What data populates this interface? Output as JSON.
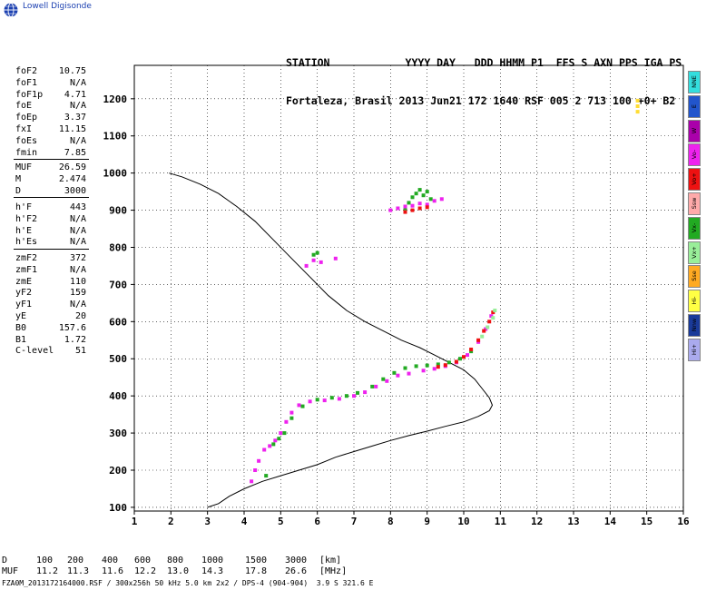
{
  "logo_text": "Lowell Digisonde",
  "header": {
    "line1": "STATION            YYYY DAY   DDD HHMM P1  FFS S AXN PPS IGA PS",
    "line2": "Fortaleza, Brasil 2013 Jun21 172 1640 RSF 005 2 713 100 +0+ B2"
  },
  "params": [
    [
      {
        "label": "foF2",
        "value": "10.75"
      },
      {
        "label": "foF1",
        "value": "N/A"
      },
      {
        "label": "foF1p",
        "value": "4.71"
      },
      {
        "label": "foE",
        "value": "N/A"
      },
      {
        "label": "foEp",
        "value": "3.37"
      },
      {
        "label": "fxI",
        "value": "11.15"
      },
      {
        "label": "foEs",
        "value": "N/A"
      },
      {
        "label": "fmin",
        "value": "7.85"
      }
    ],
    [
      {
        "label": "MUF",
        "value": "26.59"
      },
      {
        "label": "M",
        "value": "2.474"
      },
      {
        "label": "D",
        "value": "3000"
      }
    ],
    [
      {
        "label": "h'F",
        "value": "443"
      },
      {
        "label": "h'F2",
        "value": "N/A"
      },
      {
        "label": "h'E",
        "value": "N/A"
      },
      {
        "label": "h'Es",
        "value": "N/A"
      }
    ],
    [
      {
        "label": "zmF2",
        "value": "372"
      },
      {
        "label": "zmF1",
        "value": "N/A"
      },
      {
        "label": "zmE",
        "value": "110"
      },
      {
        "label": "yF2",
        "value": "159"
      },
      {
        "label": "yF1",
        "value": "N/A"
      },
      {
        "label": "yE",
        "value": "20"
      },
      {
        "label": "B0",
        "value": "157.6"
      },
      {
        "label": "B1",
        "value": "1.72"
      },
      {
        "label": "C-level",
        "value": "51"
      }
    ]
  ],
  "legend": [
    {
      "label": "NNE",
      "color": "#33dddd"
    },
    {
      "label": "E",
      "color": "#2255cc"
    },
    {
      "label": "W",
      "color": "#aa00aa"
    },
    {
      "label": "Vo-",
      "color": "#ee22ee"
    },
    {
      "label": "Vo+",
      "color": "#ee1111"
    },
    {
      "label": "Ssw",
      "color": "#ffaaaa"
    },
    {
      "label": "Vx-",
      "color": "#22aa22"
    },
    {
      "label": "Vx+",
      "color": "#99ee99"
    },
    {
      "label": "Sse",
      "color": "#ffaa22"
    },
    {
      "label": "Hi-",
      "color": "#ffff44"
    },
    {
      "label": "Nnw",
      "color": "#1a3a99"
    },
    {
      "label": "Hi+",
      "color": "#aaaaee"
    }
  ],
  "muf_table": {
    "row_labels": [
      "D",
      "MUF"
    ],
    "units": [
      "[km]",
      "[MHz]"
    ],
    "distances": [
      "100",
      "200",
      "400",
      "600",
      "800",
      "1000",
      "1500",
      "3000"
    ],
    "mufs": [
      "11.2",
      "11.3",
      "11.6",
      "12.2",
      "13.0",
      "14.3",
      "17.8",
      "26.6"
    ]
  },
  "footer": "FZA0M_2013172164000.RSF / 300x256h 50 kHz 5.0 km 2x2 / DPS-4 (904-904)  3.9 S 321.6 E",
  "chart_data": {
    "type": "scatter",
    "xlim": [
      1,
      16
    ],
    "ylim": [
      90,
      1290
    ],
    "x_ticks": [
      "1",
      "2",
      "3",
      "4",
      "5",
      "6",
      "7",
      "8",
      "9",
      "10",
      "11",
      "12",
      "13",
      "14",
      "15",
      "16"
    ],
    "y_ticks": [
      "100",
      "200",
      "300",
      "400",
      "500",
      "600",
      "700",
      "800",
      "900",
      "1000",
      "1100",
      "1200"
    ],
    "grid": true,
    "profile_line": [
      [
        3.0,
        100
      ],
      [
        3.3,
        110
      ],
      [
        3.6,
        130
      ],
      [
        4.0,
        150
      ],
      [
        4.5,
        170
      ],
      [
        5.0,
        185
      ],
      [
        5.5,
        200
      ],
      [
        6.0,
        215
      ],
      [
        6.5,
        235
      ],
      [
        7.0,
        250
      ],
      [
        7.5,
        265
      ],
      [
        8.0,
        280
      ],
      [
        8.5,
        293
      ],
      [
        9.0,
        305
      ],
      [
        9.5,
        318
      ],
      [
        10.0,
        330
      ],
      [
        10.4,
        345
      ],
      [
        10.7,
        360
      ],
      [
        10.78,
        375
      ],
      [
        10.7,
        395
      ],
      [
        10.5,
        420
      ],
      [
        10.3,
        445
      ],
      [
        10.0,
        470
      ],
      [
        9.6,
        490
      ],
      [
        9.2,
        510
      ],
      [
        8.8,
        530
      ],
      [
        8.3,
        550
      ],
      [
        7.8,
        575
      ],
      [
        7.3,
        600
      ],
      [
        6.8,
        630
      ],
      [
        6.3,
        670
      ],
      [
        5.8,
        720
      ],
      [
        5.3,
        770
      ],
      [
        4.8,
        820
      ],
      [
        4.3,
        870
      ],
      [
        3.8,
        910
      ],
      [
        3.3,
        945
      ],
      [
        2.8,
        970
      ],
      [
        2.3,
        990
      ],
      [
        1.95,
        1000
      ]
    ],
    "traces": [
      {
        "color": "#ee22ee",
        "points": [
          [
            4.2,
            170
          ],
          [
            4.3,
            200
          ],
          [
            4.4,
            225
          ],
          [
            4.55,
            255
          ],
          [
            4.7,
            265
          ],
          [
            4.85,
            280
          ],
          [
            5.0,
            300
          ],
          [
            5.15,
            330
          ],
          [
            5.3,
            355
          ],
          [
            5.5,
            375
          ],
          [
            5.8,
            385
          ],
          [
            6.2,
            388
          ],
          [
            6.6,
            392
          ],
          [
            7.0,
            400
          ],
          [
            7.3,
            410
          ],
          [
            7.6,
            425
          ],
          [
            7.9,
            440
          ],
          [
            8.2,
            455
          ],
          [
            8.5,
            460
          ],
          [
            8.9,
            468
          ],
          [
            9.2,
            473
          ],
          [
            9.5,
            480
          ],
          [
            9.8,
            490
          ],
          [
            10.1,
            510
          ],
          [
            10.4,
            545
          ],
          [
            10.6,
            580
          ],
          [
            10.75,
            615
          ]
        ]
      },
      {
        "color": "#22aa22",
        "points": [
          [
            4.6,
            185
          ],
          [
            4.8,
            270
          ],
          [
            4.95,
            285
          ],
          [
            5.1,
            300
          ],
          [
            5.3,
            340
          ],
          [
            5.6,
            372
          ],
          [
            6.0,
            390
          ],
          [
            6.4,
            395
          ],
          [
            6.8,
            400
          ],
          [
            7.1,
            408
          ],
          [
            7.5,
            425
          ],
          [
            7.8,
            445
          ],
          [
            8.1,
            462
          ],
          [
            8.4,
            475
          ],
          [
            8.7,
            480
          ],
          [
            9.0,
            482
          ],
          [
            9.3,
            485
          ],
          [
            9.6,
            490
          ],
          [
            9.9,
            500
          ],
          [
            10.2,
            520
          ]
        ]
      },
      {
        "color": "#ee1111",
        "points": [
          [
            9.3,
            478
          ],
          [
            9.5,
            483
          ],
          [
            9.8,
            492
          ],
          [
            10.0,
            505
          ],
          [
            10.2,
            525
          ],
          [
            10.4,
            550
          ],
          [
            10.55,
            575
          ],
          [
            10.7,
            600
          ],
          [
            10.8,
            625
          ]
        ]
      },
      {
        "color": "#99ee99",
        "points": [
          [
            10.5,
            560
          ],
          [
            10.65,
            585
          ],
          [
            10.8,
            610
          ],
          [
            10.85,
            630
          ]
        ]
      },
      {
        "color": "#22aa22",
        "points": [
          [
            8.4,
            905
          ],
          [
            8.5,
            920
          ],
          [
            8.6,
            935
          ],
          [
            8.7,
            945
          ],
          [
            8.8,
            955
          ],
          [
            8.9,
            940
          ],
          [
            9.0,
            950
          ],
          [
            9.1,
            930
          ]
        ]
      },
      {
        "color": "#ee22ee",
        "points": [
          [
            8.0,
            900
          ],
          [
            8.2,
            905
          ],
          [
            8.4,
            910
          ],
          [
            8.6,
            912
          ],
          [
            8.8,
            918
          ],
          [
            9.0,
            915
          ],
          [
            9.2,
            925
          ],
          [
            9.4,
            930
          ]
        ]
      },
      {
        "color": "#ee1111",
        "points": [
          [
            8.4,
            895
          ],
          [
            8.6,
            900
          ],
          [
            8.8,
            905
          ],
          [
            9.0,
            908
          ]
        ]
      },
      {
        "color": "#ee22ee",
        "points": [
          [
            5.7,
            750
          ],
          [
            5.9,
            765
          ],
          [
            6.1,
            760
          ],
          [
            6.5,
            770
          ]
        ]
      },
      {
        "color": "#22aa22",
        "points": [
          [
            5.9,
            780
          ],
          [
            6.0,
            785
          ]
        ]
      },
      {
        "color": "#ffdd33",
        "points": [
          [
            14.75,
            1180
          ],
          [
            14.75,
            1195
          ],
          [
            14.75,
            1165
          ]
        ]
      }
    ]
  }
}
